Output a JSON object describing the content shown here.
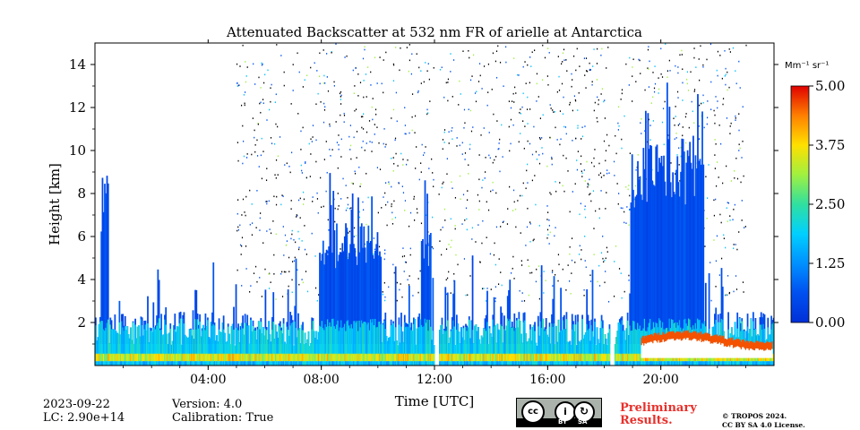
{
  "chart_data": {
    "type": "heatmap",
    "title": "Attenuated Backscatter at 532 nm FR of arielle at Antarctica",
    "xlabel": "Time [UTC]",
    "ylabel": "Height [km]",
    "xlim": [
      0,
      24
    ],
    "ylim": [
      0,
      15
    ],
    "x_ticks": [
      {
        "value": 4,
        "label": "04:00"
      },
      {
        "value": 8,
        "label": "08:00"
      },
      {
        "value": 12,
        "label": "12:00"
      },
      {
        "value": 16,
        "label": "16:00"
      },
      {
        "value": 20,
        "label": "20:00"
      }
    ],
    "y_ticks": [
      {
        "value": 2,
        "label": "2"
      },
      {
        "value": 4,
        "label": "4"
      },
      {
        "value": 6,
        "label": "6"
      },
      {
        "value": 8,
        "label": "8"
      },
      {
        "value": 10,
        "label": "10"
      },
      {
        "value": 12,
        "label": "12"
      },
      {
        "value": 14,
        "label": "14"
      }
    ],
    "colorbar": {
      "unit_label": "Mm⁻¹ sr⁻¹",
      "range": [
        0,
        5
      ],
      "ticks": [
        {
          "value": 0,
          "label": "0.00"
        },
        {
          "value": 1.25,
          "label": "1.25"
        },
        {
          "value": 2.5,
          "label": "2.50"
        },
        {
          "value": 3.75,
          "label": "3.75"
        },
        {
          "value": 5,
          "label": "5.00"
        }
      ],
      "colormap": "jet"
    },
    "data_gaps_utc": [
      12.05,
      18.25
    ],
    "features": [
      {
        "x0": 0.0,
        "x1": 24.0,
        "top_km": 0.9,
        "level": 3.2
      },
      {
        "x0": 0.2,
        "x1": 0.45,
        "top_km": 8.6,
        "level": 0.3
      },
      {
        "x0": 7.9,
        "x1": 10.1,
        "top_km": 6.4,
        "level": 0.9
      },
      {
        "x0": 11.5,
        "x1": 11.85,
        "top_km": 6.3,
        "level": 2.0
      },
      {
        "x0": 18.9,
        "x1": 21.5,
        "top_km": 10.2,
        "level": 0.6
      },
      {
        "x0": 19.3,
        "x1": 23.9,
        "top_km": 1.4,
        "level": 4.8
      }
    ],
    "grid": false
  },
  "footer": {
    "date": "2023-09-22",
    "lc": "LC: 2.90e+14",
    "version": "Version: 4.0",
    "calibration": "Calibration: True",
    "preliminary_line1": "Preliminary",
    "preliminary_line2": "Results.",
    "copyright_line1": "© TROPOS 2024.",
    "copyright_line2": "CC BY SA 4.0 License.",
    "license_badge": {
      "by": "BY",
      "sa": "SA"
    }
  }
}
